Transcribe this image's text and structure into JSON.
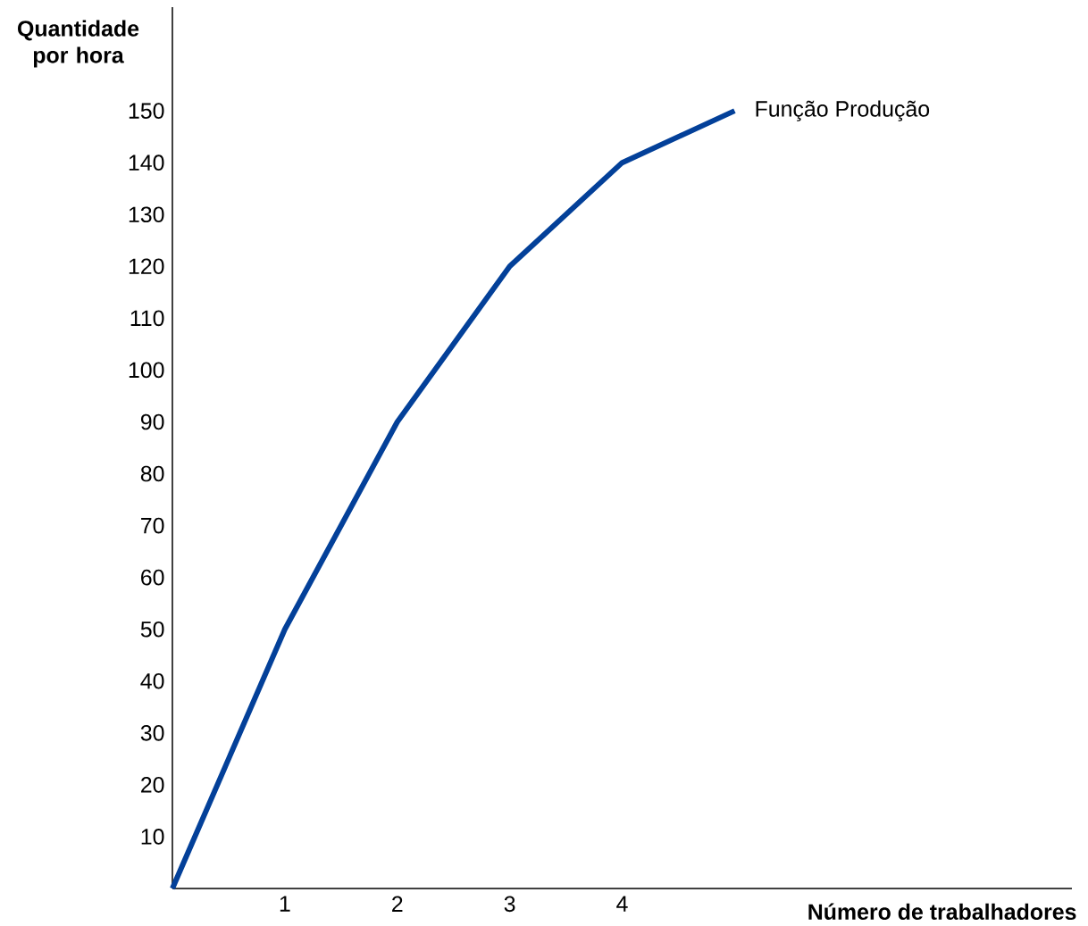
{
  "chart_data": {
    "type": "line",
    "xlabel": "Número de trabalhadores",
    "ylabel": "Quantidade por hora",
    "x": [
      0,
      1,
      2,
      3,
      4,
      5
    ],
    "values": [
      0,
      50,
      90,
      120,
      140,
      150
    ],
    "color": "#034099",
    "xlim": [
      0,
      8
    ],
    "ylim": [
      0,
      170
    ],
    "xticks": [
      1,
      2,
      3,
      4
    ],
    "yticks": [
      10,
      20,
      30,
      40,
      50,
      60,
      70,
      80,
      90,
      100,
      110,
      120,
      130,
      140,
      150
    ],
    "annotations": [
      {
        "text": "Função Produção",
        "x": 5,
        "y": 150
      }
    ]
  }
}
